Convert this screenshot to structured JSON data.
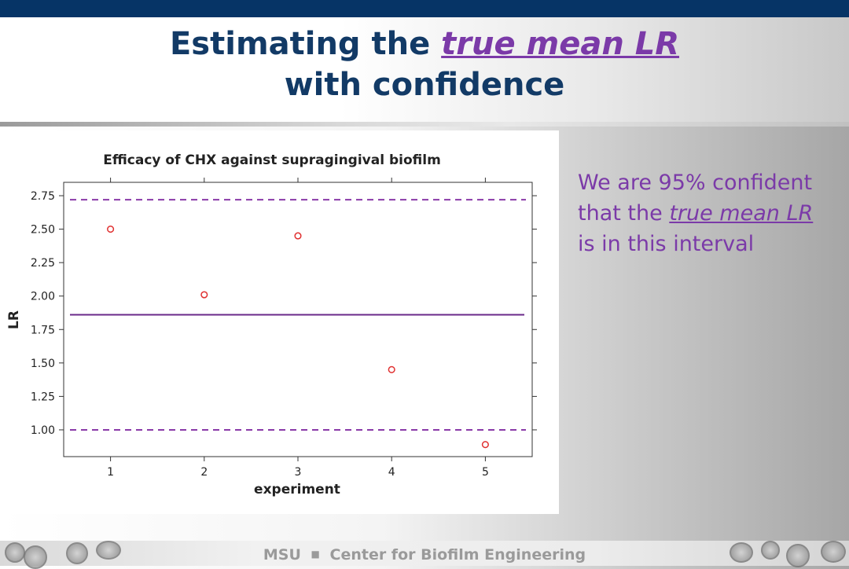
{
  "slide": {
    "title_line1_prefix": "Estimating the ",
    "title_line1_highlight": "true mean LR",
    "title_line2": "with confidence",
    "side_text_prefix": "We are 95% confident that the ",
    "side_text_highlight": "true mean LR",
    "side_text_suffix": " is in this interval",
    "footer_part1": "MSU",
    "footer_separator": "■",
    "footer_part2": "Center for Biofilm Engineering",
    "colors": {
      "banner": "#063466",
      "title": "#123a66",
      "highlight": "#7b3aa8",
      "footer_text": "#9a9a9a"
    }
  },
  "chart_data": {
    "type": "scatter",
    "title": "Efficacy of CHX against supragingival biofilm",
    "xlabel": "experiment",
    "ylabel": "LR",
    "x": [
      1,
      2,
      3,
      4,
      5
    ],
    "y": [
      2.5,
      2.01,
      2.45,
      1.45,
      0.89
    ],
    "xlim": [
      0.5,
      5.5
    ],
    "ylim": [
      0.8,
      2.85
    ],
    "x_ticks": [
      1,
      2,
      3,
      4,
      5
    ],
    "y_ticks": [
      "1.00",
      "1.25",
      "1.50",
      "1.75",
      "2.00",
      "2.25",
      "2.50",
      "2.75"
    ],
    "mean_line": 1.86,
    "confidence_interval": [
      1.0,
      2.72
    ],
    "grid": false,
    "marker": "open-circle",
    "colors": {
      "points": "#e03030",
      "mean": "#6a2a8a",
      "interval": "#8a3aa8"
    }
  }
}
